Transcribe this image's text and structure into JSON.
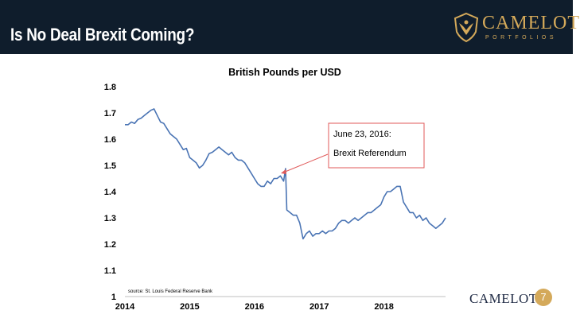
{
  "slide": {
    "title": "Is No Deal Brexit Coming?",
    "logo_name": "CAMELOT",
    "logo_sub": "PORTFOLIOS",
    "footer_logo": "CAMELOT",
    "page_number": "7",
    "colors": {
      "header_bg": "#0f1d2c",
      "gold": "#d4a95a",
      "line": "#4a74b4",
      "annotation": "#e05a5a"
    }
  },
  "chart_data": {
    "type": "line",
    "title": "British Pounds per USD",
    "xlabel": "",
    "ylabel": "",
    "ylim": [
      1.0,
      1.8
    ],
    "yticks": [
      "1",
      "1.1",
      "1.2",
      "1.3",
      "1.4",
      "1.5",
      "1.6",
      "1.7",
      "1.8"
    ],
    "xlim": [
      2014.0,
      2018.95
    ],
    "xticks": [
      "2014",
      "2015",
      "2016",
      "2017",
      "2018"
    ],
    "grid": false,
    "source": "source: St. Louis Federal Reserve Bank",
    "annotation": {
      "lines": [
        "June 23, 2016:",
        "Brexit Referendum"
      ],
      "point": {
        "x": 2016.48,
        "y": 1.488
      }
    },
    "series": [
      {
        "x": [
          2014.0,
          2014.05,
          2014.1,
          2014.15,
          2014.2,
          2014.25,
          2014.3,
          2014.35,
          2014.4,
          2014.45,
          2014.5,
          2014.55,
          2014.6,
          2014.65,
          2014.7,
          2014.75,
          2014.8,
          2014.85,
          2014.9,
          2014.95,
          2015.0,
          2015.05,
          2015.1,
          2015.15,
          2015.2,
          2015.25,
          2015.3,
          2015.35,
          2015.4,
          2015.45,
          2015.5,
          2015.55,
          2015.6,
          2015.65,
          2015.7,
          2015.75,
          2015.8,
          2015.85,
          2015.9,
          2015.95,
          2016.0,
          2016.05,
          2016.1,
          2016.15,
          2016.2,
          2016.25,
          2016.3,
          2016.35,
          2016.4,
          2016.45,
          2016.48,
          2016.5,
          2016.55,
          2016.6,
          2016.65,
          2016.7,
          2016.75,
          2016.8,
          2016.85,
          2016.9,
          2016.95,
          2017.0,
          2017.05,
          2017.1,
          2017.15,
          2017.2,
          2017.25,
          2017.3,
          2017.35,
          2017.4,
          2017.45,
          2017.5,
          2017.55,
          2017.6,
          2017.65,
          2017.7,
          2017.75,
          2017.8,
          2017.85,
          2017.9,
          2017.95,
          2018.0,
          2018.05,
          2018.1,
          2018.15,
          2018.2,
          2018.25,
          2018.3,
          2018.35,
          2018.4,
          2018.45,
          2018.5,
          2018.55,
          2018.6,
          2018.65,
          2018.7,
          2018.75,
          2018.8,
          2018.85,
          2018.9,
          2018.95
        ],
        "values": [
          1.655,
          1.655,
          1.665,
          1.66,
          1.675,
          1.68,
          1.69,
          1.7,
          1.71,
          1.715,
          1.69,
          1.665,
          1.66,
          1.64,
          1.62,
          1.61,
          1.6,
          1.58,
          1.56,
          1.565,
          1.53,
          1.52,
          1.51,
          1.49,
          1.5,
          1.52,
          1.545,
          1.55,
          1.56,
          1.57,
          1.56,
          1.55,
          1.54,
          1.55,
          1.53,
          1.52,
          1.52,
          1.51,
          1.49,
          1.47,
          1.45,
          1.43,
          1.42,
          1.42,
          1.44,
          1.43,
          1.45,
          1.45,
          1.46,
          1.44,
          1.488,
          1.33,
          1.32,
          1.31,
          1.31,
          1.28,
          1.22,
          1.24,
          1.25,
          1.23,
          1.24,
          1.24,
          1.25,
          1.24,
          1.25,
          1.25,
          1.26,
          1.28,
          1.29,
          1.29,
          1.28,
          1.29,
          1.3,
          1.29,
          1.3,
          1.31,
          1.32,
          1.32,
          1.33,
          1.34,
          1.35,
          1.38,
          1.4,
          1.4,
          1.41,
          1.42,
          1.42,
          1.36,
          1.34,
          1.32,
          1.32,
          1.3,
          1.31,
          1.29,
          1.3,
          1.28,
          1.27,
          1.26,
          1.27,
          1.28,
          1.3
        ]
      }
    ]
  }
}
